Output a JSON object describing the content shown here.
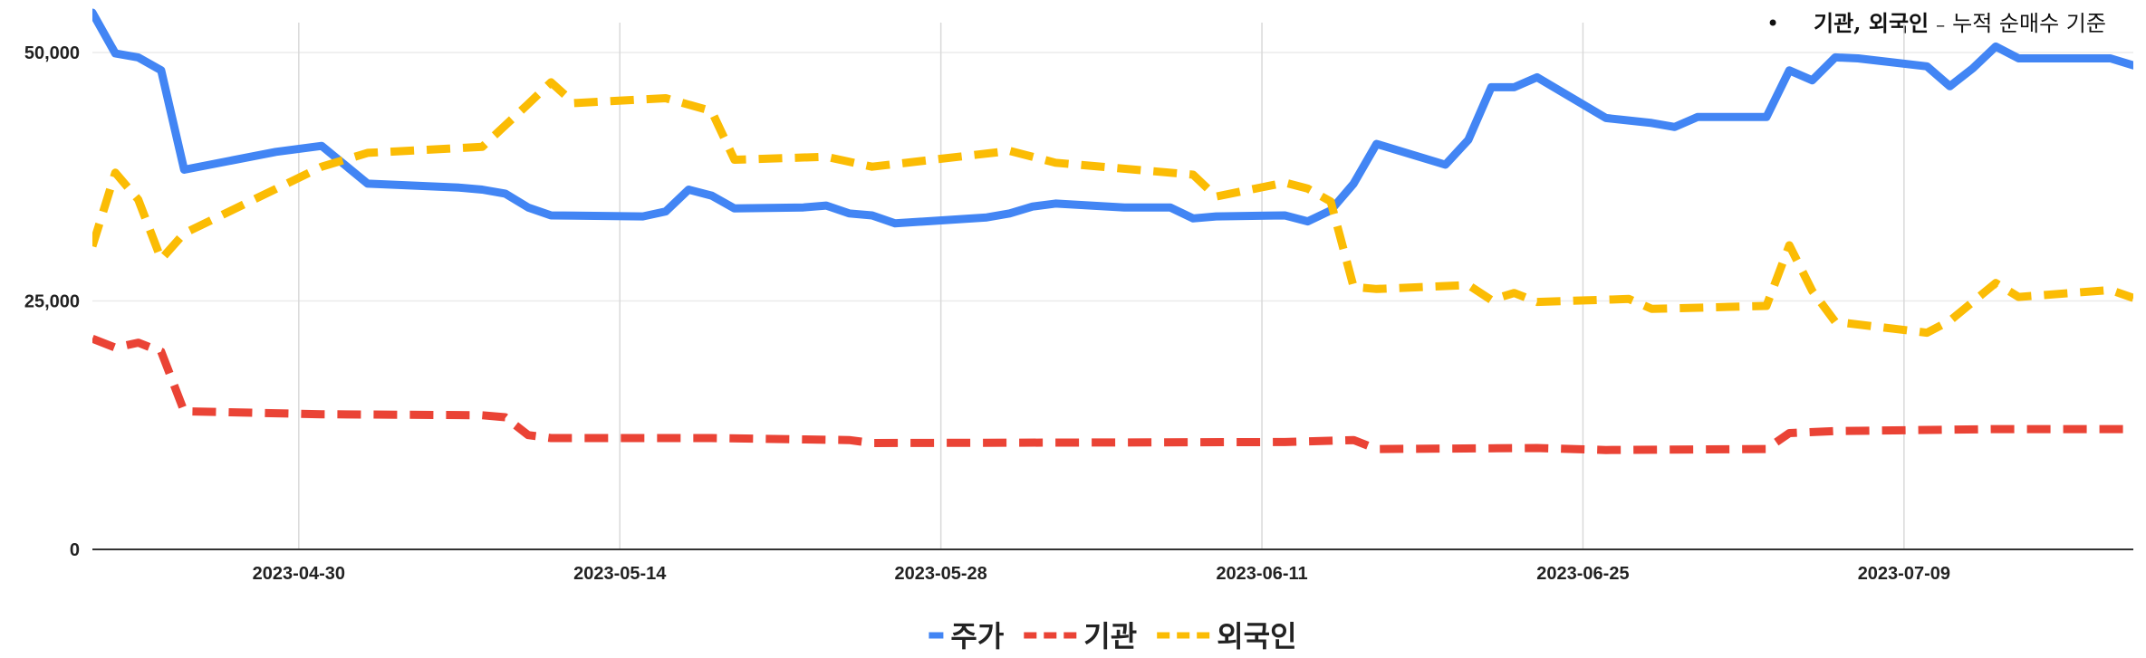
{
  "note": {
    "bullet": "•",
    "bold_part": "기관, 외국인",
    "separator": "–",
    "rest": "누적 순매수 기준"
  },
  "chart_data": {
    "type": "line",
    "title": "",
    "xlabel": "",
    "ylabel": "",
    "ylim": [
      0,
      53000
    ],
    "xlim": [
      "2023-04-21",
      "2023-07-19"
    ],
    "yticks": [
      0,
      25000,
      50000
    ],
    "ytick_labels": [
      "0",
      "25,000",
      "50,000"
    ],
    "xticks": [
      "2023-04-30",
      "2023-05-14",
      "2023-05-28",
      "2023-06-11",
      "2023-06-25",
      "2023-07-09"
    ],
    "xtick_labels": [
      "2023-04-30",
      "2023-05-14",
      "2023-05-28",
      "2023-06-11",
      "2023-06-25",
      "2023-07-09"
    ],
    "grid": true,
    "legend_position": "bottom",
    "series": [
      {
        "name": "주가",
        "color": "#4285f4",
        "dash": "solid",
        "points": [
          [
            "2023-04-21",
            54000
          ],
          [
            "2023-04-22",
            49900
          ],
          [
            "2023-04-23",
            49500
          ],
          [
            "2023-04-24",
            48200
          ],
          [
            "2023-04-25",
            38200
          ],
          [
            "2023-04-29",
            40000
          ],
          [
            "2023-05-01",
            40600
          ],
          [
            "2023-05-03",
            36800
          ],
          [
            "2023-05-07",
            36400
          ],
          [
            "2023-05-08",
            36200
          ],
          [
            "2023-05-09",
            35800
          ],
          [
            "2023-05-10",
            34400
          ],
          [
            "2023-05-11",
            33600
          ],
          [
            "2023-05-15",
            33500
          ],
          [
            "2023-05-16",
            34000
          ],
          [
            "2023-05-17",
            36200
          ],
          [
            "2023-05-18",
            35600
          ],
          [
            "2023-05-19",
            34300
          ],
          [
            "2023-05-22",
            34400
          ],
          [
            "2023-05-23",
            34600
          ],
          [
            "2023-05-24",
            33800
          ],
          [
            "2023-05-25",
            33600
          ],
          [
            "2023-05-26",
            32800
          ],
          [
            "2023-05-30",
            33400
          ],
          [
            "2023-05-31",
            33800
          ],
          [
            "2023-06-01",
            34500
          ],
          [
            "2023-06-02",
            34800
          ],
          [
            "2023-06-05",
            34400
          ],
          [
            "2023-06-07",
            34400
          ],
          [
            "2023-06-08",
            33300
          ],
          [
            "2023-06-09",
            33500
          ],
          [
            "2023-06-12",
            33600
          ],
          [
            "2023-06-13",
            33000
          ],
          [
            "2023-06-14",
            34100
          ],
          [
            "2023-06-15",
            36800
          ],
          [
            "2023-06-16",
            40800
          ],
          [
            "2023-06-19",
            38700
          ],
          [
            "2023-06-20",
            41200
          ],
          [
            "2023-06-21",
            46500
          ],
          [
            "2023-06-22",
            46500
          ],
          [
            "2023-06-23",
            47500
          ],
          [
            "2023-06-26",
            43400
          ],
          [
            "2023-06-28",
            42900
          ],
          [
            "2023-06-29",
            42500
          ],
          [
            "2023-06-30",
            43500
          ],
          [
            "2023-07-03",
            43500
          ],
          [
            "2023-07-04",
            48200
          ],
          [
            "2023-07-05",
            47200
          ],
          [
            "2023-07-06",
            49500
          ],
          [
            "2023-07-07",
            49400
          ],
          [
            "2023-07-10",
            48600
          ],
          [
            "2023-07-11",
            46600
          ],
          [
            "2023-07-12",
            48400
          ],
          [
            "2023-07-13",
            50600
          ],
          [
            "2023-07-14",
            49400
          ],
          [
            "2023-07-17",
            49400
          ],
          [
            "2023-07-18",
            49400
          ],
          [
            "2023-07-19",
            48700
          ]
        ]
      },
      {
        "name": "기관",
        "color": "#ea4335",
        "dash": "dashed",
        "points": [
          [
            "2023-04-21",
            21200
          ],
          [
            "2023-04-22",
            20300
          ],
          [
            "2023-04-23",
            20800
          ],
          [
            "2023-04-24",
            19900
          ],
          [
            "2023-04-25",
            13900
          ],
          [
            "2023-05-01",
            13600
          ],
          [
            "2023-05-08",
            13500
          ],
          [
            "2023-05-09",
            13300
          ],
          [
            "2023-05-10",
            11500
          ],
          [
            "2023-05-11",
            11200
          ],
          [
            "2023-05-18",
            11200
          ],
          [
            "2023-05-24",
            11000
          ],
          [
            "2023-05-25",
            10700
          ],
          [
            "2023-06-12",
            10800
          ],
          [
            "2023-06-15",
            11000
          ],
          [
            "2023-06-16",
            10100
          ],
          [
            "2023-06-23",
            10200
          ],
          [
            "2023-06-26",
            10000
          ],
          [
            "2023-07-03",
            10100
          ],
          [
            "2023-07-04",
            11700
          ],
          [
            "2023-07-06",
            11900
          ],
          [
            "2023-07-13",
            12100
          ],
          [
            "2023-07-19",
            12100
          ]
        ]
      },
      {
        "name": "외국인",
        "color": "#fbbc04",
        "dash": "dashed",
        "points": [
          [
            "2023-04-21",
            30500
          ],
          [
            "2023-04-22",
            37900
          ],
          [
            "2023-04-23",
            35200
          ],
          [
            "2023-04-24",
            29200
          ],
          [
            "2023-04-25",
            31800
          ],
          [
            "2023-05-01",
            38500
          ],
          [
            "2023-05-03",
            39900
          ],
          [
            "2023-05-08",
            40500
          ],
          [
            "2023-05-10",
            44800
          ],
          [
            "2023-05-11",
            47000
          ],
          [
            "2023-05-12",
            44900
          ],
          [
            "2023-05-16",
            45400
          ],
          [
            "2023-05-18",
            44100
          ],
          [
            "2023-05-19",
            39200
          ],
          [
            "2023-05-23",
            39500
          ],
          [
            "2023-05-25",
            38500
          ],
          [
            "2023-05-31",
            40100
          ],
          [
            "2023-06-02",
            38900
          ],
          [
            "2023-06-08",
            37700
          ],
          [
            "2023-06-09",
            35500
          ],
          [
            "2023-06-12",
            36900
          ],
          [
            "2023-06-13",
            36300
          ],
          [
            "2023-06-14",
            35000
          ],
          [
            "2023-06-15",
            26400
          ],
          [
            "2023-06-16",
            26200
          ],
          [
            "2023-06-20",
            26600
          ],
          [
            "2023-06-21",
            25100
          ],
          [
            "2023-06-22",
            25800
          ],
          [
            "2023-06-23",
            24900
          ],
          [
            "2023-06-27",
            25200
          ],
          [
            "2023-06-28",
            24200
          ],
          [
            "2023-07-03",
            24500
          ],
          [
            "2023-07-04",
            30600
          ],
          [
            "2023-07-05",
            26000
          ],
          [
            "2023-07-06",
            22900
          ],
          [
            "2023-07-10",
            21800
          ],
          [
            "2023-07-11",
            23000
          ],
          [
            "2023-07-13",
            26800
          ],
          [
            "2023-07-14",
            25400
          ],
          [
            "2023-07-18",
            26100
          ],
          [
            "2023-07-19",
            25300
          ]
        ]
      }
    ]
  }
}
